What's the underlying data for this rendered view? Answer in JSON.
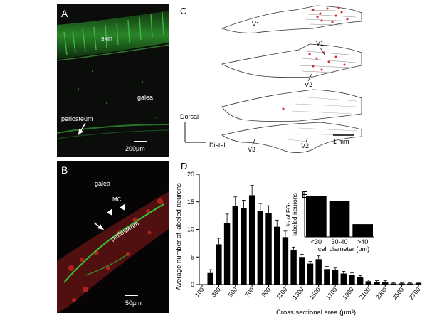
{
  "figure": {
    "panelA": {
      "letter": "A",
      "labels": {
        "skin": "skin",
        "galea": "galea",
        "periosteum": "periosteum"
      },
      "scale": "200µm"
    },
    "panelB": {
      "letter": "B",
      "labels": {
        "galea": "galea",
        "mc": "MC",
        "periosteum": "periosteum"
      },
      "scale": "50µm"
    },
    "panelC": {
      "letter": "C",
      "labels": {
        "v1_top": "V1",
        "v1_mid": "V1",
        "v2_mid": "V2",
        "v3": "V3",
        "v2_bot": "V2"
      },
      "axis_dorsal": "Dorsal",
      "axis_distal": "Distal",
      "scale": "1 mm"
    },
    "panelD": {
      "letter": "D"
    },
    "panelE": {
      "letter": "E"
    }
  },
  "chart_data": [
    {
      "type": "bar",
      "panel": "D",
      "title": "",
      "xlabel": "Cross sectional area (µm²)",
      "ylabel": "Average number of labeled neurons",
      "ylim": [
        0,
        20
      ],
      "yticks": [
        0,
        5,
        10,
        15,
        20
      ],
      "xticks": [
        "100",
        "300",
        "500",
        "700",
        "900",
        "1100",
        "1300",
        "1500",
        "1700",
        "1900",
        "2100",
        "2300",
        "2500",
        "2700"
      ],
      "x": [
        100,
        200,
        300,
        400,
        500,
        600,
        700,
        800,
        900,
        1000,
        1100,
        1200,
        1300,
        1400,
        1500,
        1600,
        1700,
        1800,
        1900,
        2000,
        2100,
        2200,
        2300,
        2400,
        2500,
        2600,
        2700
      ],
      "values": [
        0,
        2.1,
        7.3,
        11.1,
        14.3,
        13.9,
        16.2,
        13.3,
        13.0,
        10.5,
        8.6,
        6.3,
        5.0,
        3.8,
        4.6,
        2.8,
        2.6,
        2.0,
        1.8,
        1.3,
        0.6,
        0.5,
        0.5,
        0.2,
        0.2,
        0.2,
        0.3
      ],
      "errors": [
        0,
        0.6,
        1.1,
        1.7,
        1.6,
        1.4,
        1.8,
        1.4,
        1.3,
        1.2,
        1.1,
        0.5,
        0.5,
        0.4,
        0.6,
        0.5,
        0.4,
        0.4,
        0.3,
        0.3,
        0.2,
        0.2,
        0.2,
        0.1,
        0.1,
        0.1,
        0.1
      ],
      "grid": false
    },
    {
      "type": "bar",
      "panel": "E",
      "title": "",
      "xlabel": "cell diameter (µm)",
      "ylabel": "% of FG-labeled neurons",
      "ylabel_lines": [
        "% of FG-",
        "labeled neurons"
      ],
      "ylim": [
        0,
        50
      ],
      "yticks": [
        0,
        10,
        20,
        30,
        40,
        50
      ],
      "categories": [
        "<30",
        "30-40",
        ">40"
      ],
      "values": [
        45.5,
        39.7,
        14.2
      ],
      "grid": false
    }
  ]
}
